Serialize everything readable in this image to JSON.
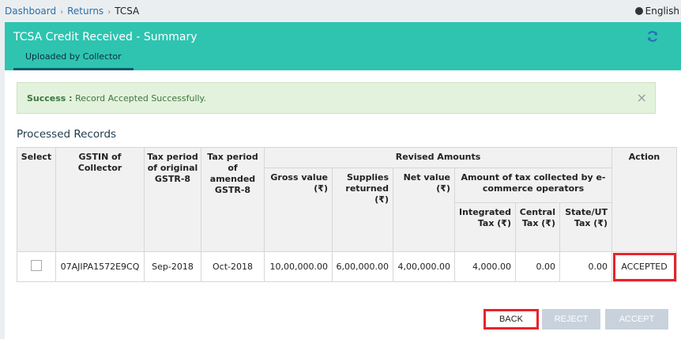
{
  "breadcrumb": {
    "items": [
      "Dashboard",
      "Returns"
    ],
    "current": "TCSA"
  },
  "language": "English",
  "header": {
    "title": "TCSA Credit Received - Summary",
    "tab": "Uploaded by Collector"
  },
  "alert": {
    "label": "Success :",
    "message": "Record Accepted Successfully.",
    "close": "×"
  },
  "section_title": "Processed Records",
  "table": {
    "headers": {
      "select": "Select",
      "gstin": "GSTIN of Collector",
      "period_orig": "Tax period of original GSTR-8",
      "period_amend": "Tax period of amended GSTR-8",
      "revised": "Revised Amounts",
      "action": "Action",
      "gross": "Gross value (₹)",
      "supplies": "Supplies returned (₹)",
      "net": "Net value (₹)",
      "amount_tax": "Amount of tax collected by e-commerce operators",
      "igst": "Integrated Tax (₹)",
      "cgst": "Central Tax (₹)",
      "sgst": "State/UT Tax (₹)"
    },
    "row": {
      "gstin": "07AJIPA1572E9CQ",
      "period_orig": "Sep-2018",
      "period_amend": "Oct-2018",
      "gross": "10,00,000.00",
      "supplies": "6,00,000.00",
      "net": "4,00,000.00",
      "igst": "4,000.00",
      "cgst": "0.00",
      "sgst": "0.00",
      "action": "ACCEPTED"
    }
  },
  "buttons": {
    "back": "BACK",
    "reject": "REJECT",
    "accept": "ACCEPT"
  },
  "colors": {
    "header": "#2ec4b0",
    "highlight": "#e8232a",
    "disabled_button": "#c9d2dc"
  }
}
